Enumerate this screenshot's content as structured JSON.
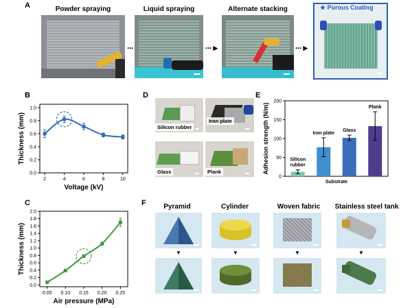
{
  "panel_labels": {
    "a": "A",
    "b": "B",
    "c": "C",
    "d": "D",
    "e": "E",
    "f": "F"
  },
  "panel_a": {
    "steps": [
      "Powder spraying",
      "Liquid spraying",
      "Alternate stacking"
    ],
    "final_label": "Porous Coating",
    "star_icon": "★"
  },
  "panel_d": {
    "tags": [
      "Silicon rubber",
      "Iron plate",
      "Glass",
      "Plank"
    ]
  },
  "panel_f": {
    "columns": [
      "Pyramid",
      "Cylinder",
      "Woven fabric",
      "Stainless steel tank"
    ],
    "arrow": "▼"
  },
  "chart_data": [
    {
      "id": "B",
      "type": "line",
      "xlabel": "Voltage (kV)",
      "ylabel": "Thickness (mm)",
      "xlim": [
        1.5,
        10.5
      ],
      "ylim": [
        0.0,
        1.05
      ],
      "xticks": [
        "2",
        "4",
        "6",
        "8",
        "10"
      ],
      "yticks": [
        "0.0",
        "0.2",
        "0.4",
        "0.6",
        "0.8",
        "1.0"
      ],
      "x": [
        2,
        4,
        6,
        8,
        10
      ],
      "y": [
        0.6,
        0.82,
        0.71,
        0.58,
        0.55
      ],
      "err": [
        0.06,
        0.05,
        0.05,
        0.03,
        0.03
      ],
      "color": "#2f6db5",
      "highlight_x": 4
    },
    {
      "id": "C",
      "type": "line",
      "xlabel": "Air pressure (MPa)",
      "ylabel": "Thickness (mm)",
      "xlim": [
        0.03,
        0.27
      ],
      "ylim": [
        -0.05,
        2.0
      ],
      "xticks": [
        "0.05",
        "0.10",
        "0.15",
        "0.20",
        "0.25"
      ],
      "yticks": [
        "0.0",
        "0.2",
        "0.4",
        "0.6",
        "0.8",
        "1.0",
        "1.2",
        "1.4",
        "1.6",
        "1.8",
        "2.0"
      ],
      "x": [
        0.05,
        0.1,
        0.15,
        0.2,
        0.25
      ],
      "y": [
        0.07,
        0.39,
        0.78,
        1.12,
        1.7
      ],
      "err": [
        0.02,
        0.02,
        0.03,
        0.04,
        0.11
      ],
      "color": "#3c9a3c",
      "highlight_x": 0.15
    },
    {
      "id": "E",
      "type": "bar",
      "ylabel": "Adhesion strength (N/m)",
      "xlabel": "Substrate",
      "ylim": [
        0,
        200
      ],
      "yticks": [
        "0",
        "50",
        "100",
        "150",
        "200"
      ],
      "categories": [
        "Silicon rubber",
        "Iron plate",
        "Glass",
        "Plank"
      ],
      "category_lines": [
        [
          "Silicon",
          "rubber"
        ],
        [
          "Iron plate"
        ],
        [
          "Glass"
        ],
        [
          "Plank"
        ]
      ],
      "values": [
        12,
        77,
        102,
        133
      ],
      "err": [
        5,
        25,
        7,
        38
      ],
      "colors": [
        "#7cc8b0",
        "#3f8fcf",
        "#3a6fb8",
        "#4e3d8f"
      ]
    }
  ]
}
